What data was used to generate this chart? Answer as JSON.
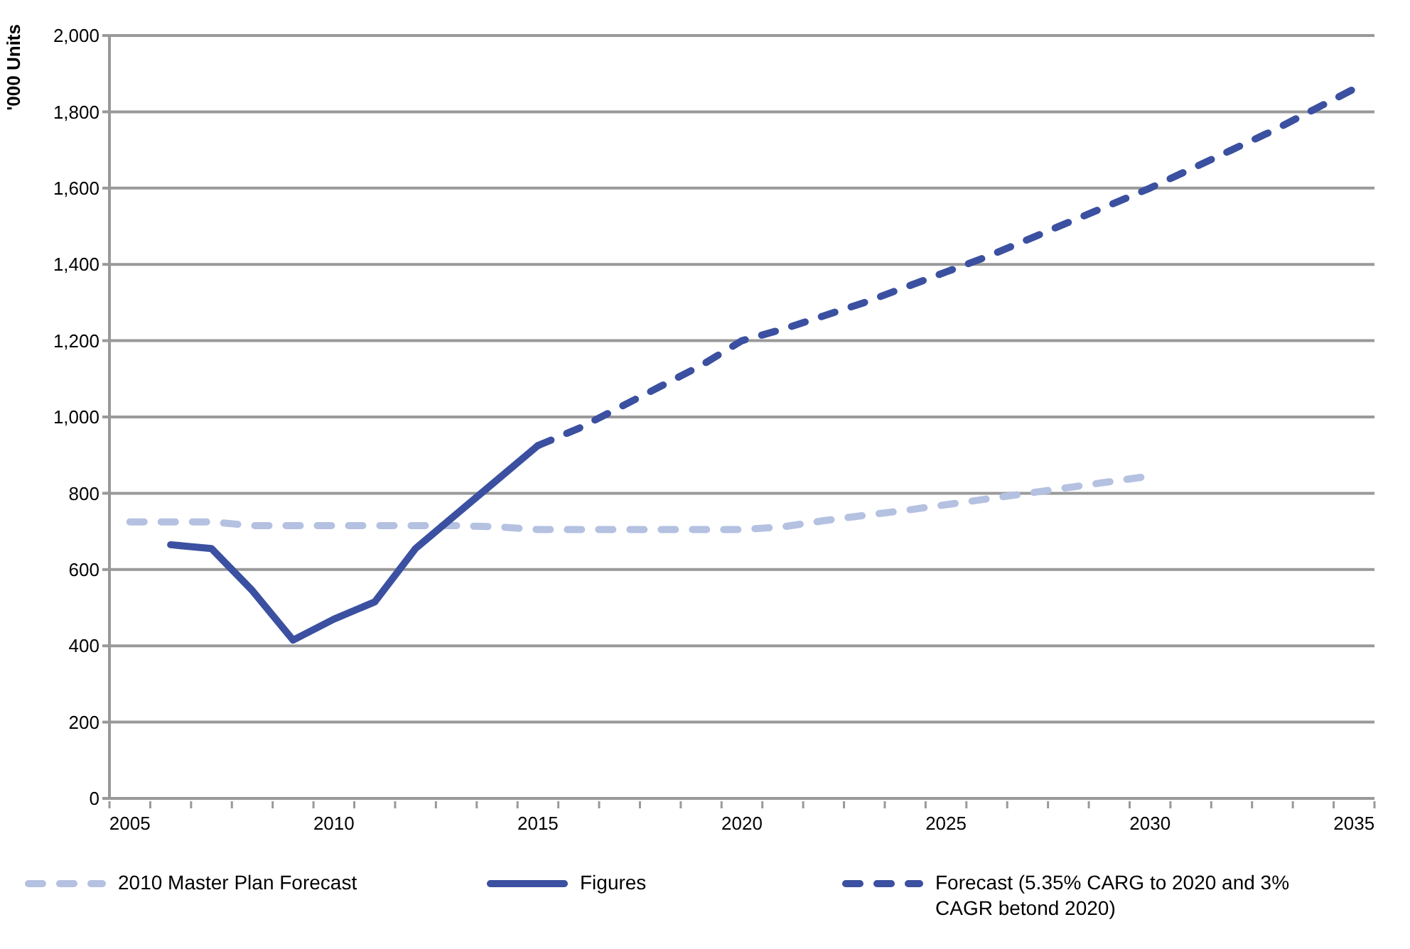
{
  "chart_data": {
    "type": "line",
    "ylabel": "'000 Units",
    "categories": [
      "2005",
      null,
      null,
      null,
      null,
      "2010",
      null,
      null,
      null,
      null,
      "2015",
      null,
      null,
      null,
      null,
      "2020",
      null,
      null,
      null,
      null,
      "2025",
      null,
      null,
      null,
      null,
      "2030",
      null,
      null,
      null,
      null,
      "2035"
    ],
    "series": [
      {
        "name": "2010 Master Plan Forecast",
        "color": "#b4c1e1",
        "line_style": "dashed",
        "values": [
          725,
          725,
          725,
          715,
          715,
          715,
          715,
          715,
          715,
          712,
          705,
          705,
          705,
          705,
          705,
          705,
          712,
          728,
          742,
          755,
          770,
          785,
          800,
          815,
          830,
          845,
          null,
          null,
          null,
          null,
          null
        ]
      },
      {
        "name": "Figures",
        "color": "#3b50a0",
        "line_style": "solid",
        "values": [
          null,
          665,
          655,
          545,
          415,
          470,
          515,
          655,
          745,
          835,
          925,
          null,
          null,
          null,
          null,
          null,
          null,
          null,
          null,
          null,
          null,
          null,
          null,
          null,
          null,
          null,
          null,
          null,
          null,
          null,
          null
        ]
      },
      {
        "name": "Forecast (5.35% CARG to 2020 and 3% CAGR betond 2020)",
        "color": "#3b50a0",
        "line_style": "dashed",
        "values": [
          null,
          null,
          null,
          null,
          null,
          null,
          null,
          null,
          null,
          null,
          925,
          970,
          1025,
          1080,
          1135,
          1200,
          1230,
          1265,
          1300,
          1340,
          1380,
          1420,
          1465,
          1510,
          1555,
          1600,
          1650,
          1700,
          1750,
          1805,
          1860
        ]
      }
    ],
    "ylim": [
      0,
      2000
    ],
    "yticks": [
      0,
      200,
      400,
      600,
      800,
      {
        "value": 1000,
        "label": "1,000"
      },
      {
        "value": 1200,
        "label": "1,200"
      },
      {
        "value": 1400,
        "label": "1,400"
      },
      {
        "value": 1600,
        "label": "1,600"
      },
      {
        "value": 1800,
        "label": "1,800"
      },
      {
        "value": 2000,
        "label": "2,000"
      }
    ],
    "grid": "y",
    "legend": "bottom",
    "marker": "none"
  }
}
